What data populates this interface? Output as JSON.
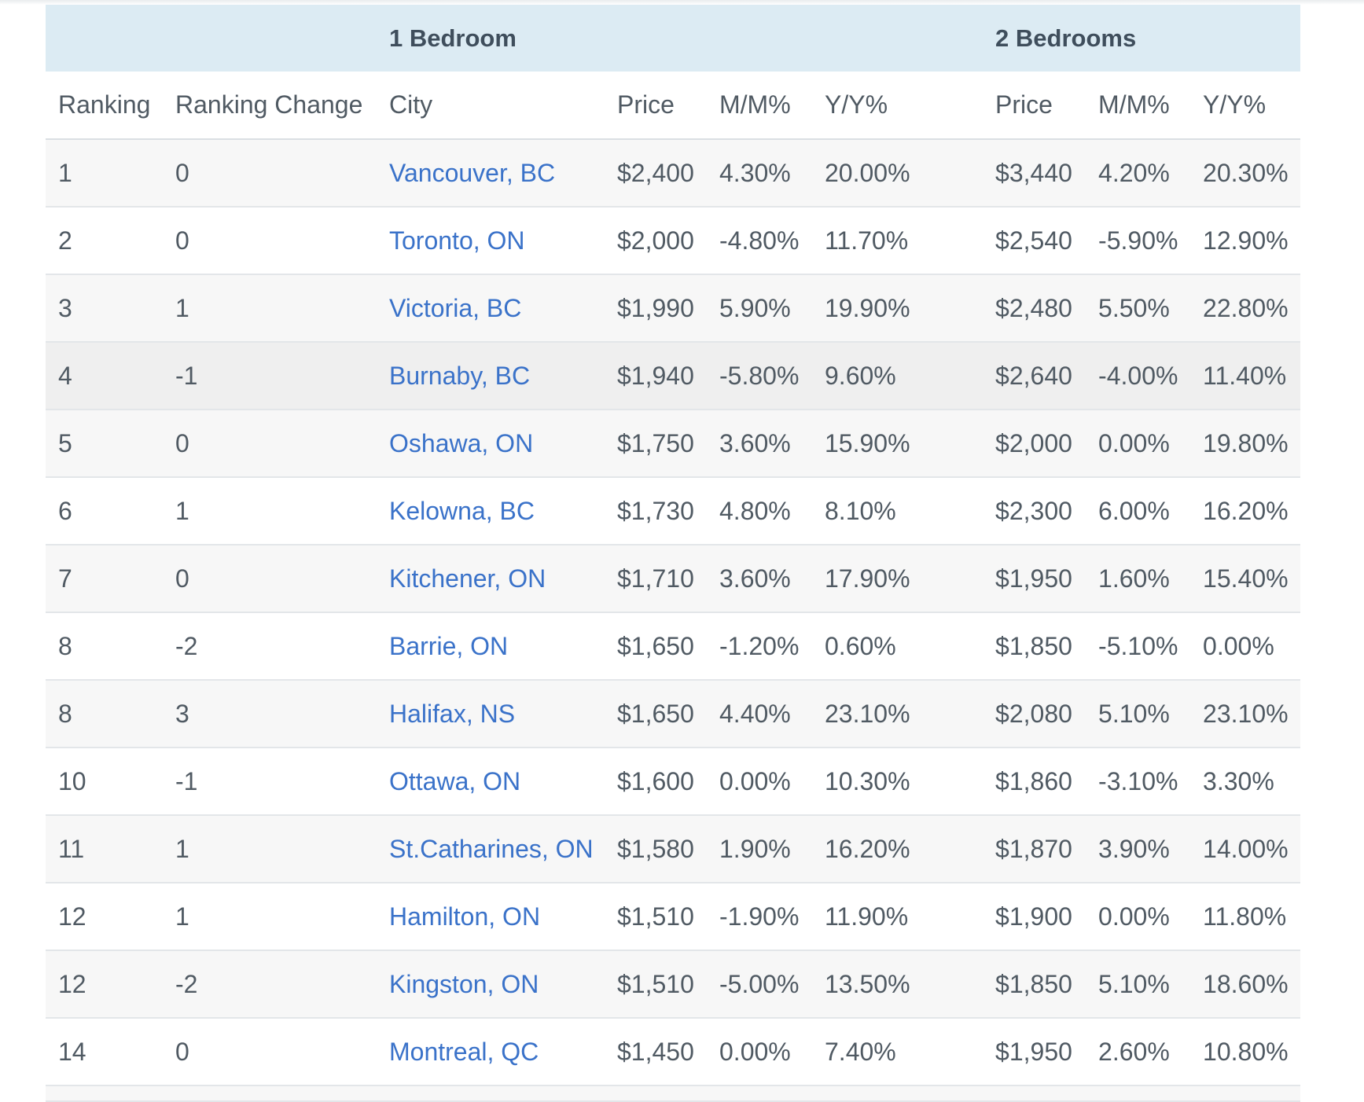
{
  "table": {
    "group_headers": {
      "one_bedroom": "1 Bedroom",
      "two_bedrooms": "2 Bedrooms"
    },
    "columns": [
      "Ranking",
      "Ranking Change",
      "City",
      "Price",
      "M/M%",
      "Y/Y%",
      "Price",
      "M/M%",
      "Y/Y%"
    ],
    "rows": [
      {
        "ranking": "1",
        "change": "0",
        "city": "Vancouver, BC",
        "p1": "$2,400",
        "mm1": "4.30%",
        "yy1": "20.00%",
        "p2": "$3,440",
        "mm2": "4.20%",
        "yy2": "20.30%"
      },
      {
        "ranking": "2",
        "change": "0",
        "city": "Toronto, ON",
        "p1": "$2,000",
        "mm1": "-4.80%",
        "yy1": "11.70%",
        "p2": "$2,540",
        "mm2": "-5.90%",
        "yy2": "12.90%"
      },
      {
        "ranking": "3",
        "change": "1",
        "city": "Victoria, BC",
        "p1": "$1,990",
        "mm1": "5.90%",
        "yy1": "19.90%",
        "p2": "$2,480",
        "mm2": "5.50%",
        "yy2": "22.80%"
      },
      {
        "ranking": "4",
        "change": "-1",
        "city": "Burnaby, BC",
        "p1": "$1,940",
        "mm1": "-5.80%",
        "yy1": "9.60%",
        "p2": "$2,640",
        "mm2": "-4.00%",
        "yy2": "11.40%"
      },
      {
        "ranking": "5",
        "change": "0",
        "city": "Oshawa, ON",
        "p1": "$1,750",
        "mm1": "3.60%",
        "yy1": "15.90%",
        "p2": "$2,000",
        "mm2": "0.00%",
        "yy2": "19.80%"
      },
      {
        "ranking": "6",
        "change": "1",
        "city": "Kelowna, BC",
        "p1": "$1,730",
        "mm1": "4.80%",
        "yy1": "8.10%",
        "p2": "$2,300",
        "mm2": "6.00%",
        "yy2": "16.20%"
      },
      {
        "ranking": "7",
        "change": "0",
        "city": "Kitchener, ON",
        "p1": "$1,710",
        "mm1": "3.60%",
        "yy1": "17.90%",
        "p2": "$1,950",
        "mm2": "1.60%",
        "yy2": "15.40%"
      },
      {
        "ranking": "8",
        "change": "-2",
        "city": "Barrie, ON",
        "p1": "$1,650",
        "mm1": "-1.20%",
        "yy1": "0.60%",
        "p2": "$1,850",
        "mm2": "-5.10%",
        "yy2": "0.00%"
      },
      {
        "ranking": "8",
        "change": "3",
        "city": "Halifax, NS",
        "p1": "$1,650",
        "mm1": "4.40%",
        "yy1": "23.10%",
        "p2": "$2,080",
        "mm2": "5.10%",
        "yy2": "23.10%"
      },
      {
        "ranking": "10",
        "change": "-1",
        "city": "Ottawa, ON",
        "p1": "$1,600",
        "mm1": "0.00%",
        "yy1": "10.30%",
        "p2": "$1,860",
        "mm2": "-3.10%",
        "yy2": "3.30%"
      },
      {
        "ranking": "11",
        "change": "1",
        "city": "St.Catharines, ON",
        "p1": "$1,580",
        "mm1": "1.90%",
        "yy1": "16.20%",
        "p2": "$1,870",
        "mm2": "3.90%",
        "yy2": "14.00%"
      },
      {
        "ranking": "12",
        "change": "1",
        "city": "Hamilton, ON",
        "p1": "$1,510",
        "mm1": "-1.90%",
        "yy1": "11.90%",
        "p2": "$1,900",
        "mm2": "0.00%",
        "yy2": "11.80%"
      },
      {
        "ranking": "12",
        "change": "-2",
        "city": "Kingston, ON",
        "p1": "$1,510",
        "mm1": "-5.00%",
        "yy1": "13.50%",
        "p2": "$1,850",
        "mm2": "5.10%",
        "yy2": "18.60%"
      },
      {
        "ranking": "14",
        "change": "0",
        "city": "Montreal, QC",
        "p1": "$1,450",
        "mm1": "0.00%",
        "yy1": "7.40%",
        "p2": "$1,950",
        "mm2": "2.60%",
        "yy2": "10.80%"
      }
    ]
  },
  "colors": {
    "header_bg": "#dcebf3",
    "link": "#3a72c9",
    "text": "#505a63",
    "row_stripe": "#f7f7f7",
    "row_hover": "#efefef"
  }
}
